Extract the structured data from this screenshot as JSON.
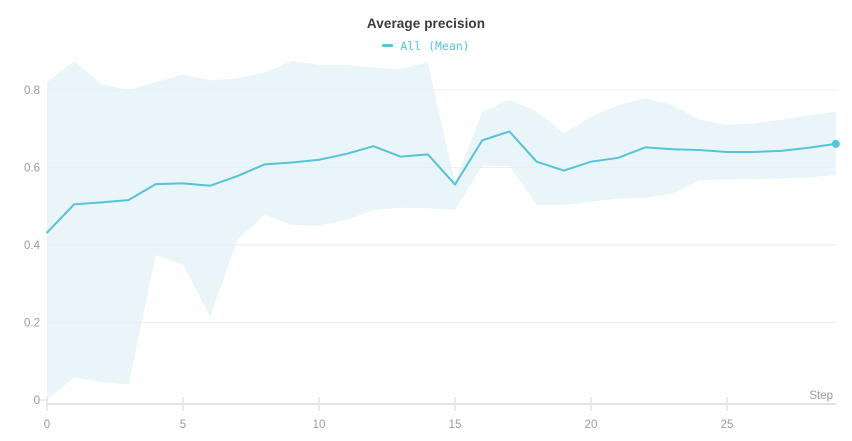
{
  "panel": {
    "title": "Average precision",
    "legend": [
      {
        "label": "All (Mean)",
        "color": "#56c3d8"
      }
    ]
  },
  "chart_data": {
    "type": "line",
    "title": "Average precision",
    "xlabel": "Step",
    "ylabel": "",
    "legend_position": "top-center",
    "grid": "horizontal",
    "xlim": [
      0,
      29
    ],
    "ylim": [
      0,
      0.9
    ],
    "x_ticks": [
      0,
      5,
      10,
      15,
      20,
      25
    ],
    "y_ticks": [
      0,
      0.2,
      0.4,
      0.6,
      0.8
    ],
    "series": [
      {
        "name": "All (Mean)",
        "color": "#56c3d8",
        "band_color": "#e3f3f8",
        "has_confidence_band": true,
        "end_marker": true,
        "x": [
          0,
          1,
          2,
          3,
          4,
          5,
          6,
          7,
          8,
          9,
          10,
          11,
          12,
          13,
          14,
          15,
          16,
          17,
          18,
          19,
          20,
          21,
          22,
          23,
          24,
          25,
          26,
          27,
          28,
          29
        ],
        "y": [
          0.432,
          0.505,
          0.51,
          0.516,
          0.557,
          0.559,
          0.553,
          0.578,
          0.608,
          0.613,
          0.62,
          0.635,
          0.655,
          0.628,
          0.634,
          0.556,
          0.67,
          0.693,
          0.615,
          0.592,
          0.615,
          0.625,
          0.652,
          0.647,
          0.645,
          0.64,
          0.64,
          0.643,
          0.651,
          0.661
        ],
        "band_upper": [
          0.82,
          0.875,
          0.815,
          0.8,
          0.82,
          0.84,
          0.825,
          0.83,
          0.845,
          0.875,
          0.865,
          0.865,
          0.858,
          0.854,
          0.871,
          0.56,
          0.744,
          0.775,
          0.745,
          0.688,
          0.731,
          0.761,
          0.779,
          0.761,
          0.723,
          0.71,
          0.714,
          0.723,
          0.735,
          0.744
        ],
        "band_lower": [
          0.002,
          0.058,
          0.046,
          0.04,
          0.374,
          0.35,
          0.215,
          0.413,
          0.478,
          0.452,
          0.45,
          0.465,
          0.49,
          0.496,
          0.495,
          0.49,
          0.605,
          0.604,
          0.503,
          0.503,
          0.512,
          0.52,
          0.521,
          0.533,
          0.568,
          0.569,
          0.57,
          0.572,
          0.574,
          0.581
        ]
      }
    ]
  },
  "colors": {
    "title_text": "#3b3b3b",
    "axis_text": "#9b9b9b",
    "gridline": "#ececec",
    "axis_line": "#e2e2e2",
    "background": "#ffffff",
    "series_line": "#56c3d8",
    "band_fill": "#e3f3f8"
  }
}
